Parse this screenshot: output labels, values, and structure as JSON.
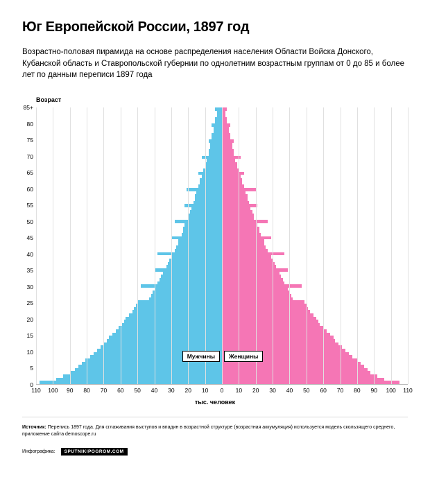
{
  "title": "Юг Европейской России, 1897 год",
  "subtitle": "Возрастно-половая пирамида на основе распределения населения Области Войска Донского, Кубанской область и Ставропольской губернии по однолетним возрастным группам от 0 до 85 и более лет по данным переписи 1897 года",
  "ylabel": "Возраст",
  "xlabel": "тыс. человек",
  "legend_male": "Мужчины",
  "legend_female": "Женщины",
  "source_label": "Источник:",
  "source_text": "Перепись 1897 года. Для сглаживания выступов и впадин в возрастной структуре (возрастная аккумуляция) используется модель скользящего среднего, приложение сайта demoscope.ru",
  "credit_label": "Инфографика:",
  "credit_badge": "SPUTNIKIPOGROM.COM",
  "chart": {
    "type": "population-pyramid",
    "male_color": "#5ec5e8",
    "female_color": "#f576b5",
    "background_color": "#ffffff",
    "grid_color": "#e0e0e0",
    "axis_color": "#bcbcbc",
    "xlim": [
      -110,
      110
    ],
    "xtick_step": 10,
    "xticks_left": [
      110,
      100,
      90,
      80,
      70,
      60,
      50,
      40,
      30,
      20,
      10,
      0
    ],
    "xticks_right": [
      10,
      20,
      30,
      40,
      50,
      60,
      70,
      80,
      90,
      100,
      110
    ],
    "yticks": [
      0,
      5,
      10,
      15,
      20,
      25,
      30,
      35,
      40,
      45,
      50,
      55,
      60,
      65,
      70,
      75,
      80,
      "85+"
    ],
    "ages": [
      0,
      1,
      2,
      3,
      4,
      5,
      6,
      7,
      8,
      9,
      10,
      11,
      12,
      13,
      14,
      15,
      16,
      17,
      18,
      19,
      20,
      21,
      22,
      23,
      24,
      25,
      26,
      27,
      28,
      29,
      30,
      31,
      32,
      33,
      34,
      35,
      36,
      37,
      38,
      39,
      40,
      41,
      42,
      43,
      44,
      45,
      46,
      47,
      48,
      49,
      50,
      51,
      52,
      53,
      54,
      55,
      56,
      57,
      58,
      59,
      60,
      61,
      62,
      63,
      64,
      65,
      66,
      67,
      68,
      69,
      70,
      71,
      72,
      73,
      74,
      75,
      76,
      77,
      78,
      79,
      80,
      81,
      82,
      83,
      84,
      85
    ],
    "male": [
      108,
      98,
      94,
      90,
      87,
      85,
      83,
      81,
      78,
      76,
      74,
      72,
      70,
      68,
      67,
      65,
      63,
      61,
      59,
      58,
      57,
      55,
      53,
      52,
      51,
      50,
      43,
      42,
      41,
      40,
      48,
      38,
      37,
      36,
      35,
      40,
      33,
      32,
      31,
      30,
      38,
      28,
      27,
      26,
      26,
      30,
      24,
      23,
      23,
      22,
      28,
      20,
      20,
      19,
      18,
      22,
      17,
      16,
      16,
      15,
      21,
      14,
      13,
      13,
      12,
      14,
      11,
      10,
      10,
      9,
      12,
      8,
      8,
      7,
      7,
      8,
      6,
      6,
      5,
      5,
      6,
      4,
      4,
      3,
      3,
      4
    ],
    "female": [
      105,
      96,
      92,
      88,
      86,
      84,
      82,
      80,
      77,
      75,
      73,
      71,
      69,
      67,
      66,
      64,
      62,
      60,
      58,
      57,
      56,
      54,
      52,
      51,
      50,
      49,
      42,
      41,
      40,
      39,
      47,
      37,
      36,
      35,
      34,
      39,
      32,
      31,
      30,
      29,
      37,
      27,
      26,
      25,
      25,
      29,
      23,
      22,
      22,
      21,
      27,
      19,
      19,
      18,
      17,
      21,
      16,
      15,
      15,
      14,
      20,
      13,
      12,
      12,
      11,
      13,
      10,
      9,
      9,
      8,
      11,
      7,
      7,
      6,
      6,
      7,
      5,
      5,
      4,
      4,
      5,
      3,
      3,
      2,
      2,
      3
    ],
    "title_fontsize": 20,
    "subtitle_fontsize": 11.5,
    "tick_fontsize": 8.5,
    "label_fontsize": 9
  }
}
